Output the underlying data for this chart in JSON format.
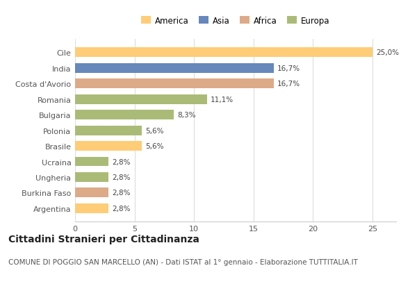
{
  "categories": [
    "Cile",
    "India",
    "Costa d'Avorio",
    "Romania",
    "Bulgaria",
    "Polonia",
    "Brasile",
    "Ucraina",
    "Ungheria",
    "Burkina Faso",
    "Argentina"
  ],
  "values": [
    25.0,
    16.7,
    16.7,
    11.1,
    8.3,
    5.6,
    5.6,
    2.8,
    2.8,
    2.8,
    2.8
  ],
  "labels": [
    "25,0%",
    "16,7%",
    "16,7%",
    "11,1%",
    "8,3%",
    "5,6%",
    "5,6%",
    "2,8%",
    "2,8%",
    "2,8%",
    "2,8%"
  ],
  "colors": [
    "#FFCC77",
    "#6688BB",
    "#DDAA88",
    "#AABB77",
    "#AABB77",
    "#AABB77",
    "#FFCC77",
    "#AABB77",
    "#AABB77",
    "#DDAA88",
    "#FFCC77"
  ],
  "legend_labels": [
    "America",
    "Asia",
    "Africa",
    "Europa"
  ],
  "legend_colors": [
    "#FFCC77",
    "#6688BB",
    "#DDAA88",
    "#AABB77"
  ],
  "title": "Cittadini Stranieri per Cittadinanza",
  "subtitle": "COMUNE DI POGGIO SAN MARCELLO (AN) - Dati ISTAT al 1° gennaio - Elaborazione TUTTITALIA.IT",
  "xlim": [
    0,
    27
  ],
  "xticks": [
    0,
    5,
    10,
    15,
    20,
    25
  ],
  "bg_color": "#ffffff",
  "title_fontsize": 10,
  "subtitle_fontsize": 7.5,
  "label_fontsize": 7.5,
  "tick_fontsize": 8,
  "legend_fontsize": 8.5
}
